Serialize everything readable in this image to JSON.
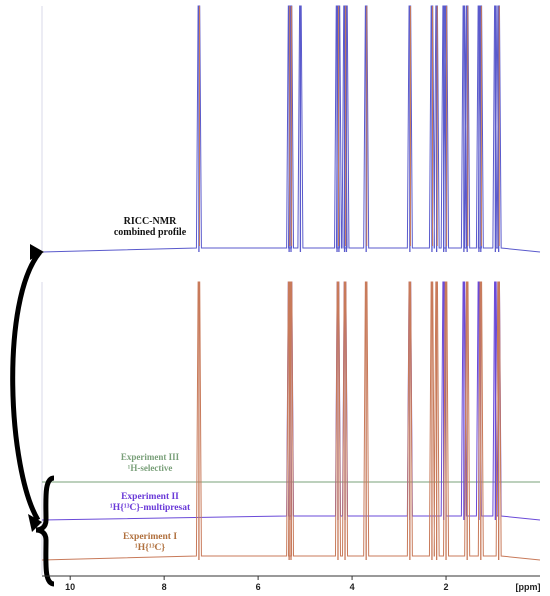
{
  "chart_data": {
    "type": "line",
    "title": "",
    "xlabel": "[ppm]",
    "ylabel": "",
    "xlim": [
      10.6,
      0.0
    ],
    "x_ticks": [
      "10",
      "8",
      "6",
      "4",
      "2"
    ],
    "x_ticks_values": [
      10,
      8,
      6,
      4,
      2
    ],
    "grid": false,
    "legend": "inline",
    "x_axis_reversed": true,
    "panels": [
      {
        "name": "RICC-NMR combined profile",
        "label_lines": [
          "RICC-NMR",
          "combined profile"
        ],
        "color": "#5a5acc",
        "peaks_ppm": [
          7.26,
          5.34,
          5.3,
          5.1,
          4.32,
          4.28,
          4.16,
          4.12,
          3.7,
          2.77,
          2.3,
          2.2,
          2.05,
          2.0,
          1.62,
          1.55,
          1.3,
          1.26,
          0.95,
          0.88
        ]
      }
    ],
    "series": [
      {
        "name": "Experiment III",
        "label_lines": [
          "Experiment III",
          "¹H-selective"
        ],
        "color": "#7aa07a",
        "peaks_ppm": []
      },
      {
        "name": "Experiment II",
        "label_lines": [
          "Experiment II",
          "¹H{¹³C}-multipresat"
        ],
        "color": "#6a4ad8",
        "peaks_ppm": [
          5.34,
          5.3,
          4.3,
          4.15,
          2.77,
          2.05,
          1.62,
          1.3,
          0.95,
          0.88
        ]
      },
      {
        "name": "Experiment I",
        "label_lines": [
          "Experiment I",
          "¹H{¹³C}"
        ],
        "color": "#c87a5a",
        "peaks_ppm": [
          7.26,
          5.34,
          5.3,
          4.3,
          4.15,
          3.7,
          2.77,
          2.3,
          2.2,
          2.0,
          1.55,
          1.26,
          0.88
        ]
      }
    ]
  }
}
